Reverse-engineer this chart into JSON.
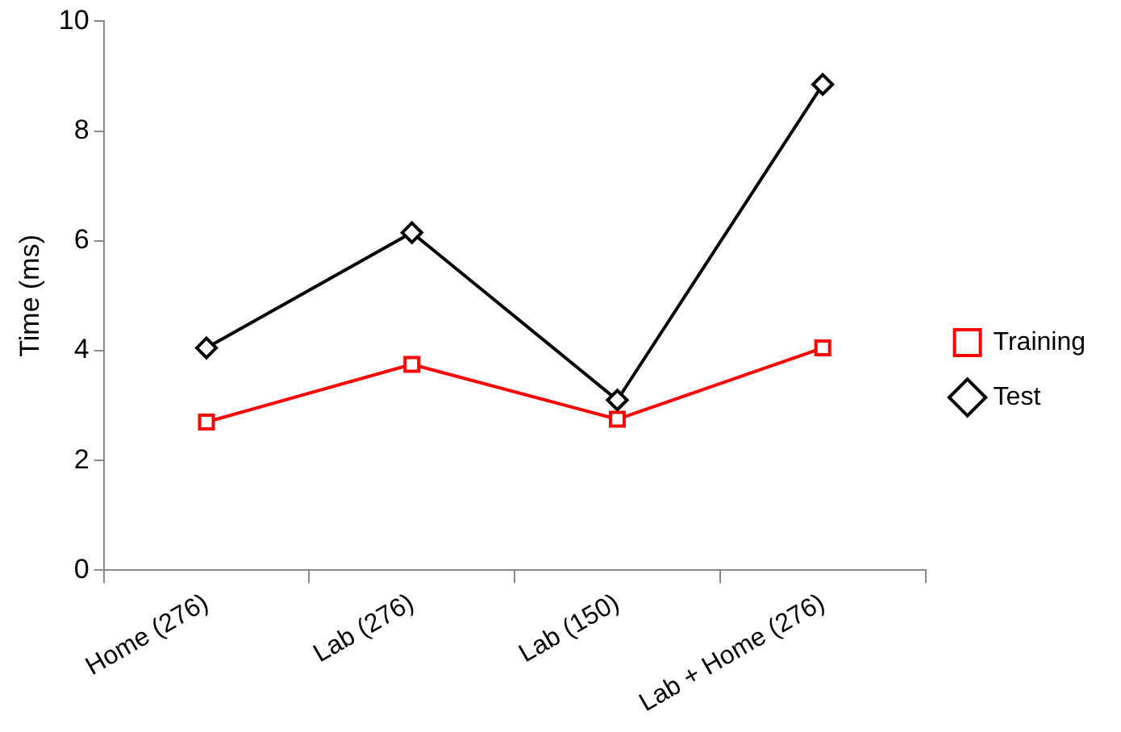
{
  "chart_data": {
    "type": "line",
    "ylabel": "Time (ms)",
    "categories": [
      "Home (276)",
      "Lab (276)",
      "Lab (150)",
      "Lab + Home (276)"
    ],
    "series": [
      {
        "name": "Training",
        "color": "#ff0000",
        "marker": "square",
        "values": [
          2.7,
          3.75,
          2.75,
          4.05
        ]
      },
      {
        "name": "Test",
        "color": "#000000",
        "marker": "diamond",
        "values": [
          4.05,
          6.15,
          3.1,
          8.85
        ]
      }
    ],
    "ylim": [
      0,
      10
    ],
    "yticks": [
      0,
      2,
      4,
      6,
      8,
      10
    ],
    "grid": false,
    "legend": "right",
    "line_style": "solid"
  }
}
